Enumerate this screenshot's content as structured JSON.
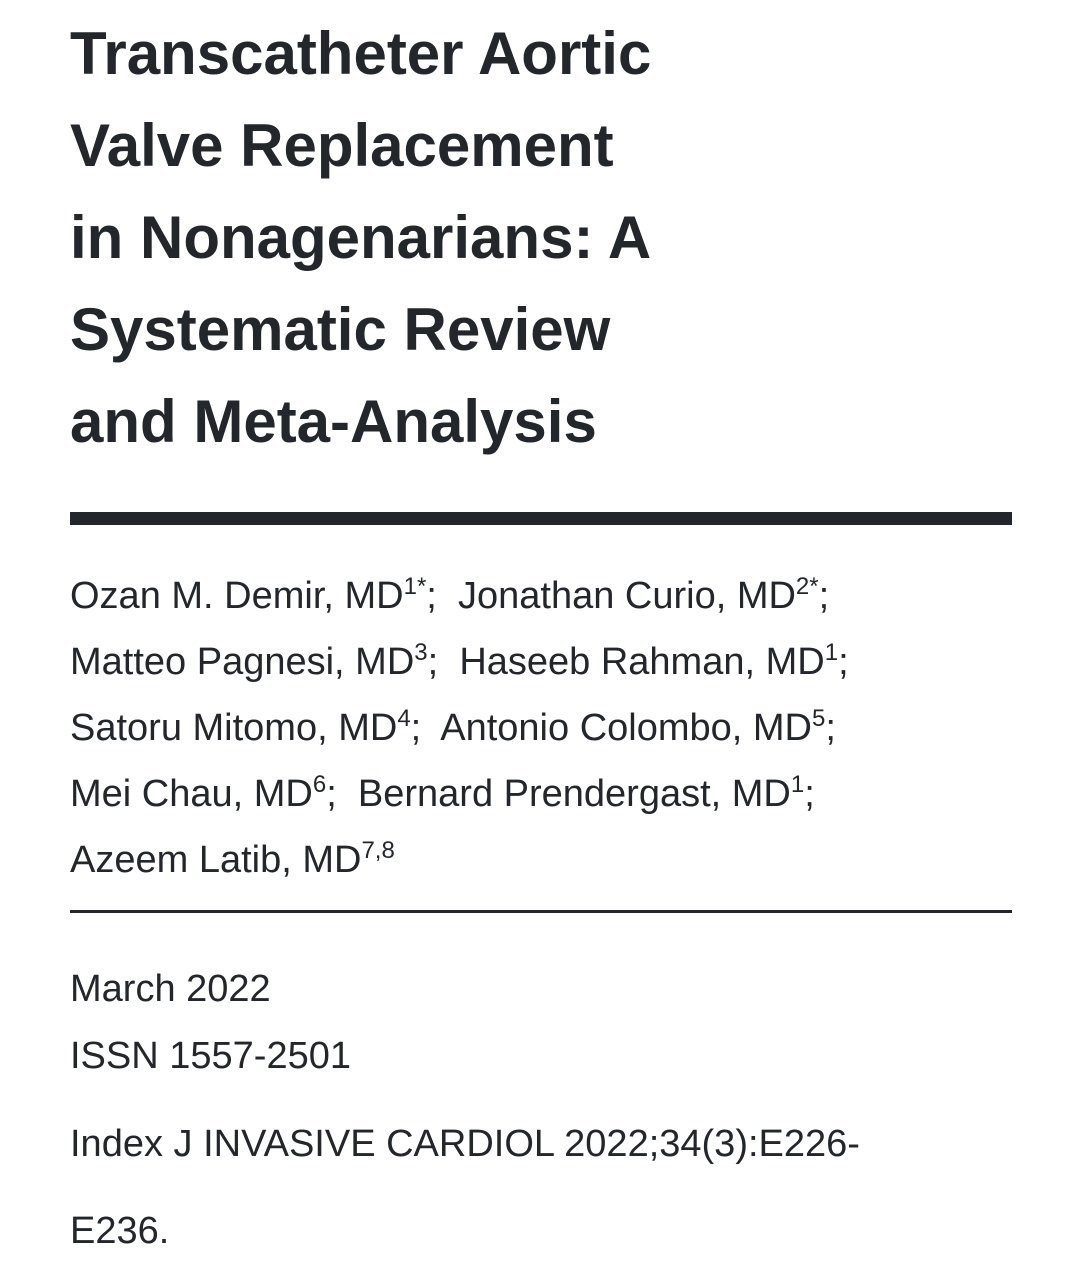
{
  "title_lines": [
    "Transcatheter Aortic",
    "Valve Replacement",
    "in Nonagenarians: A",
    "Systematic Review",
    "and Meta-Analysis"
  ],
  "authors": [
    [
      {
        "name": "Ozan M. Demir, MD",
        "sup": "1*"
      },
      {
        "name": "Jonathan Curio, MD",
        "sup": "2*"
      }
    ],
    [
      {
        "name": "Matteo Pagnesi, MD",
        "sup": "3"
      },
      {
        "name": "Haseeb Rahman, MD",
        "sup": "1"
      }
    ],
    [
      {
        "name": "Satoru Mitomo, MD",
        "sup": "4"
      },
      {
        "name": "Antonio Colombo, MD",
        "sup": "5"
      }
    ],
    [
      {
        "name": "Mei Chau, MD",
        "sup": "6"
      },
      {
        "name": "Bernard Prendergast, MD",
        "sup": "1"
      }
    ],
    [
      {
        "name": "Azeem Latib, MD",
        "sup": "7,8"
      }
    ]
  ],
  "date": "March 2022",
  "issn": "ISSN 1557-2501",
  "citation_line1": "Index J INVASIVE CARDIOL 2022;34(3):E226-",
  "citation_line2": "E236."
}
